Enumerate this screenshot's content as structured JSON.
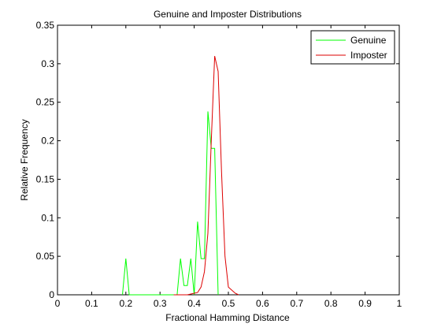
{
  "chart_data": {
    "type": "line",
    "title": "Genuine and Imposter Distributions",
    "xlabel": "Fractional Hamming Distance",
    "ylabel": "Relative Frequency",
    "xlim": [
      0,
      1
    ],
    "ylim": [
      0,
      0.35
    ],
    "xticks": [
      0,
      0.1,
      0.2,
      0.3,
      0.4,
      0.5,
      0.6,
      0.7,
      0.8,
      0.9,
      1
    ],
    "yticks": [
      0,
      0.05,
      0.1,
      0.15,
      0.2,
      0.25,
      0.3,
      0.35
    ],
    "xtick_labels": [
      "0",
      "0.1",
      "0.2",
      "0.3",
      "0.4",
      "0.5",
      "0.6",
      "0.7",
      "0.8",
      "0.9",
      "1"
    ],
    "ytick_labels": [
      "0",
      "0.05",
      "0.1",
      "0.15",
      "0.2",
      "0.25",
      "0.3",
      "0.35"
    ],
    "grid": false,
    "legend_position": "top-right",
    "series": [
      {
        "name": "Genuine",
        "color": "#00ff00",
        "x": [
          0.19,
          0.2,
          0.21,
          0.35,
          0.36,
          0.37,
          0.38,
          0.39,
          0.4,
          0.41,
          0.42,
          0.43,
          0.44,
          0.45,
          0.46,
          0.47
        ],
        "y": [
          0,
          0.047,
          0,
          0,
          0.047,
          0.012,
          0.012,
          0.047,
          0,
          0.095,
          0.047,
          0.047,
          0.238,
          0.19,
          0.19,
          0
        ]
      },
      {
        "name": "Imposter",
        "color": "#dd0000",
        "x": [
          0.34,
          0.38,
          0.41,
          0.42,
          0.43,
          0.44,
          0.45,
          0.46,
          0.47,
          0.48,
          0.49,
          0.5,
          0.52,
          0.53
        ],
        "y": [
          0,
          0,
          0.003,
          0.01,
          0.03,
          0.08,
          0.2,
          0.31,
          0.29,
          0.16,
          0.05,
          0.01,
          0.002,
          0
        ]
      }
    ]
  }
}
